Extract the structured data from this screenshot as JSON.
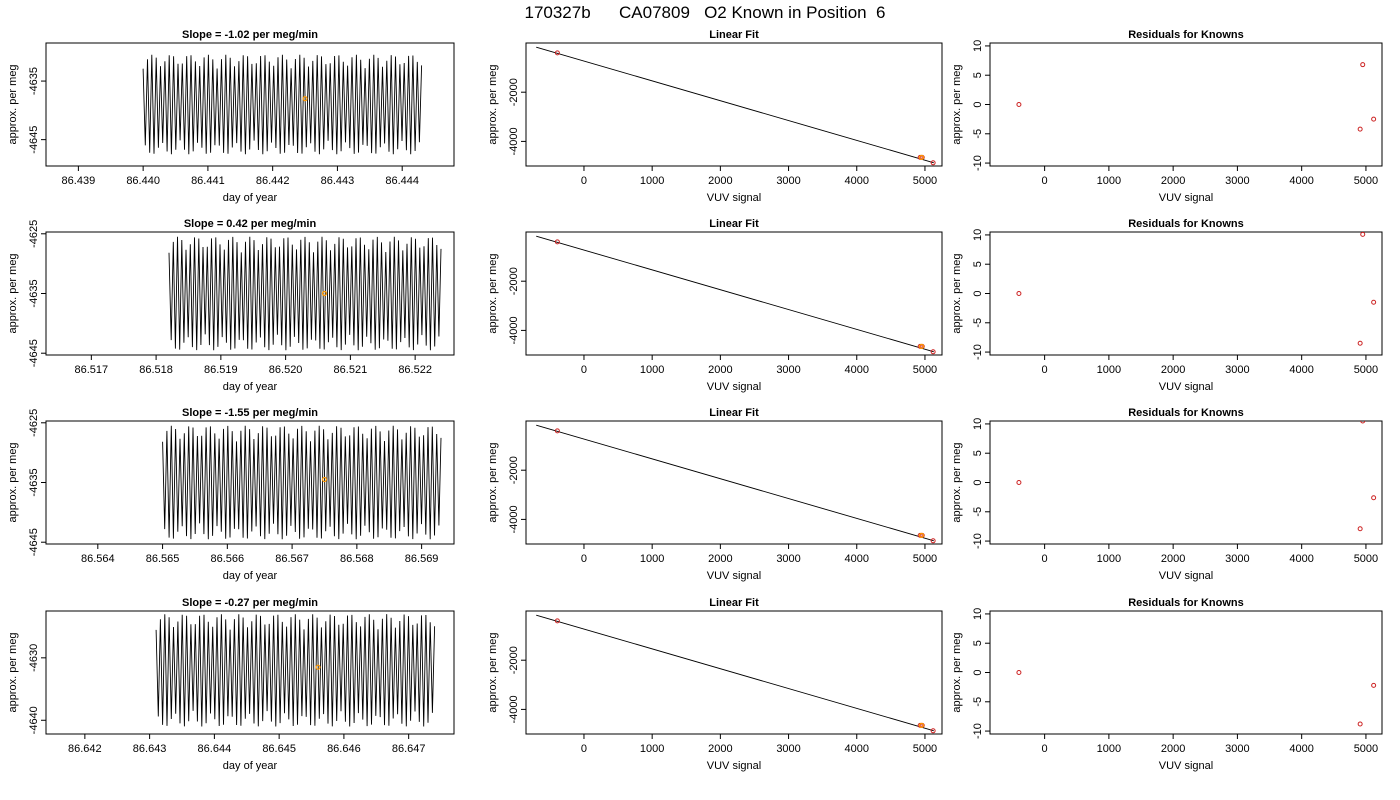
{
  "page_title": "170327b      CA07809   O2 Known in Position  6",
  "colors": {
    "trace": "#000000",
    "point": "#cc2222",
    "highlight": "#ff9900"
  },
  "chart_data": [
    {
      "type": "line",
      "title": "Slope =  -1.02  per meg/min",
      "xlabel": "day of year",
      "ylabel": "approx. per meg",
      "xlim": [
        86.4385,
        86.4448
      ],
      "ylim": [
        -4649.5,
        -4628.5
      ],
      "xticks": [
        "86.439",
        "86.440",
        "86.441",
        "86.442",
        "86.443",
        "86.444"
      ],
      "yticks": [
        "-4635",
        "-4645"
      ],
      "trace": {
        "x_start": 86.44,
        "x_end": 86.4443,
        "center": -4639,
        "amplitude": 8.5,
        "cycles": 64
      },
      "highlight": [
        {
          "x": 86.4425,
          "y": -4638
        }
      ]
    },
    {
      "type": "scatter",
      "title": "Linear Fit",
      "xlabel": "VUV signal",
      "ylabel": "approx. per meg",
      "xlim": [
        -850,
        5250
      ],
      "ylim": [
        -5000,
        0
      ],
      "xticks": [
        "0",
        "1000",
        "2000",
        "3000",
        "4000",
        "5000"
      ],
      "yticks": [
        "-2000",
        "-4000"
      ],
      "fit": {
        "x": [
          -700,
          5130
        ],
        "y": [
          -170,
          -4870
        ]
      },
      "points": [
        {
          "x": -390,
          "y": -400
        },
        {
          "x": 4930,
          "y": -4650
        },
        {
          "x": 4960,
          "y": -4650
        },
        {
          "x": 5120,
          "y": -4870
        }
      ],
      "highlight": [
        {
          "x": 4950,
          "y": -4650
        }
      ]
    },
    {
      "type": "scatter",
      "title": "Residuals for Knowns",
      "xlabel": "VUV signal",
      "ylabel": "approx. per meg",
      "xlim": [
        -850,
        5250
      ],
      "ylim": [
        -10.5,
        10.5
      ],
      "xticks": [
        "0",
        "1000",
        "2000",
        "3000",
        "4000",
        "5000"
      ],
      "yticks": [
        "-10",
        "-5",
        "0",
        "5",
        "10"
      ],
      "points": [
        {
          "x": -400,
          "y": 0
        },
        {
          "x": 4910,
          "y": -4.2
        },
        {
          "x": 4950,
          "y": 6.8
        },
        {
          "x": 5120,
          "y": -2.5
        }
      ]
    },
    {
      "type": "line",
      "title": "Slope =  0.42  per meg/min",
      "xlabel": "day of year",
      "ylabel": "approx. per meg",
      "xlim": [
        86.5163,
        86.5226
      ],
      "ylim": [
        -4645.3,
        -4624.7
      ],
      "xticks": [
        "86.517",
        "86.518",
        "86.519",
        "86.520",
        "86.521",
        "86.522"
      ],
      "yticks": [
        "-4625",
        "-4635",
        "-4645"
      ],
      "trace": {
        "x_start": 86.5182,
        "x_end": 86.5224,
        "center": -4635,
        "amplitude": 9.5,
        "cycles": 64
      },
      "highlight": [
        {
          "x": 86.5206,
          "y": -4635
        }
      ]
    },
    {
      "type": "scatter",
      "title": "Linear Fit",
      "xlabel": "VUV signal",
      "ylabel": "approx. per meg",
      "xlim": [
        -850,
        5250
      ],
      "ylim": [
        -5000,
        0
      ],
      "xticks": [
        "0",
        "1000",
        "2000",
        "3000",
        "4000",
        "5000"
      ],
      "yticks": [
        "-2000",
        "-4000"
      ],
      "fit": {
        "x": [
          -700,
          5130
        ],
        "y": [
          -170,
          -4870
        ]
      },
      "points": [
        {
          "x": -390,
          "y": -400
        },
        {
          "x": 4930,
          "y": -4650
        },
        {
          "x": 4960,
          "y": -4650
        },
        {
          "x": 5120,
          "y": -4870
        }
      ],
      "highlight": [
        {
          "x": 4950,
          "y": -4650
        }
      ]
    },
    {
      "type": "scatter",
      "title": "Residuals for Knowns",
      "xlabel": "VUV signal",
      "ylabel": "approx. per meg",
      "xlim": [
        -850,
        5250
      ],
      "ylim": [
        -10.5,
        10.5
      ],
      "xticks": [
        "0",
        "1000",
        "2000",
        "3000",
        "4000",
        "5000"
      ],
      "yticks": [
        "-10",
        "-5",
        "0",
        "5",
        "10"
      ],
      "points": [
        {
          "x": -400,
          "y": 0
        },
        {
          "x": 4910,
          "y": -8.5
        },
        {
          "x": 4950,
          "y": 10.1
        },
        {
          "x": 5120,
          "y": -1.5
        }
      ]
    },
    {
      "type": "line",
      "title": "Slope =  -1.55  per meg/min",
      "xlabel": "day of year",
      "ylabel": "approx. per meg",
      "xlim": [
        86.5632,
        86.5695
      ],
      "ylim": [
        -4645.3,
        -4624.7
      ],
      "xticks": [
        "86.564",
        "86.565",
        "86.566",
        "86.567",
        "86.568",
        "86.569"
      ],
      "yticks": [
        "-4625",
        "-4635",
        "-4645"
      ],
      "trace": {
        "x_start": 86.565,
        "x_end": 86.5693,
        "center": -4635,
        "amplitude": 9.5,
        "cycles": 64
      },
      "highlight": [
        {
          "x": 86.5675,
          "y": -4634.5
        }
      ]
    },
    {
      "type": "scatter",
      "title": "Linear Fit",
      "xlabel": "VUV signal",
      "ylabel": "approx. per meg",
      "xlim": [
        -850,
        5250
      ],
      "ylim": [
        -5000,
        0
      ],
      "xticks": [
        "0",
        "1000",
        "2000",
        "3000",
        "4000",
        "5000"
      ],
      "yticks": [
        "-2000",
        "-4000"
      ],
      "fit": {
        "x": [
          -700,
          5130
        ],
        "y": [
          -170,
          -4870
        ]
      },
      "points": [
        {
          "x": -390,
          "y": -400
        },
        {
          "x": 4930,
          "y": -4650
        },
        {
          "x": 4960,
          "y": -4650
        },
        {
          "x": 5120,
          "y": -4870
        }
      ],
      "highlight": [
        {
          "x": 4950,
          "y": -4650
        }
      ]
    },
    {
      "type": "scatter",
      "title": "Residuals for Knowns",
      "xlabel": "VUV signal",
      "ylabel": "approx. per meg",
      "xlim": [
        -850,
        5250
      ],
      "ylim": [
        -10.5,
        10.5
      ],
      "xticks": [
        "0",
        "1000",
        "2000",
        "3000",
        "4000",
        "5000"
      ],
      "yticks": [
        "-10",
        "-5",
        "0",
        "5",
        "10"
      ],
      "points": [
        {
          "x": -400,
          "y": 0
        },
        {
          "x": 4910,
          "y": -7.9
        },
        {
          "x": 4950,
          "y": 10.5
        },
        {
          "x": 5120,
          "y": -2.6
        }
      ]
    },
    {
      "type": "line",
      "title": "Slope =  -0.27  per meg/min",
      "xlabel": "day of year",
      "ylabel": "approx. per meg",
      "xlim": [
        86.6414,
        86.6477
      ],
      "ylim": [
        -4642.2,
        -4622.5
      ],
      "xticks": [
        "86.642",
        "86.643",
        "86.644",
        "86.645",
        "86.646",
        "86.647"
      ],
      "yticks": [
        "-4630",
        "-4640"
      ],
      "trace": {
        "x_start": 86.6431,
        "x_end": 86.6474,
        "center": -4632,
        "amplitude": 9.0,
        "cycles": 64
      },
      "highlight": [
        {
          "x": 86.6456,
          "y": -4631.5
        }
      ]
    },
    {
      "type": "scatter",
      "title": "Linear Fit",
      "xlabel": "VUV signal",
      "ylabel": "approx. per meg",
      "xlim": [
        -850,
        5250
      ],
      "ylim": [
        -5000,
        0
      ],
      "xticks": [
        "0",
        "1000",
        "2000",
        "3000",
        "4000",
        "5000"
      ],
      "yticks": [
        "-2000",
        "-4000"
      ],
      "fit": {
        "x": [
          -700,
          5130
        ],
        "y": [
          -170,
          -4870
        ]
      },
      "points": [
        {
          "x": -390,
          "y": -400
        },
        {
          "x": 4930,
          "y": -4650
        },
        {
          "x": 4960,
          "y": -4650
        },
        {
          "x": 5120,
          "y": -4870
        }
      ],
      "highlight": [
        {
          "x": 4950,
          "y": -4650
        }
      ]
    },
    {
      "type": "scatter",
      "title": "Residuals for Knowns",
      "xlabel": "VUV signal",
      "ylabel": "approx. per meg",
      "xlim": [
        -850,
        5250
      ],
      "ylim": [
        -10.5,
        10.5
      ],
      "xticks": [
        "0",
        "1000",
        "2000",
        "3000",
        "4000",
        "5000"
      ],
      "yticks": [
        "-10",
        "-5",
        "0",
        "5",
        "10"
      ],
      "points": [
        {
          "x": -400,
          "y": 0
        },
        {
          "x": 4910,
          "y": -8.8
        },
        {
          "x": 5120,
          "y": -2.2
        }
      ]
    }
  ]
}
